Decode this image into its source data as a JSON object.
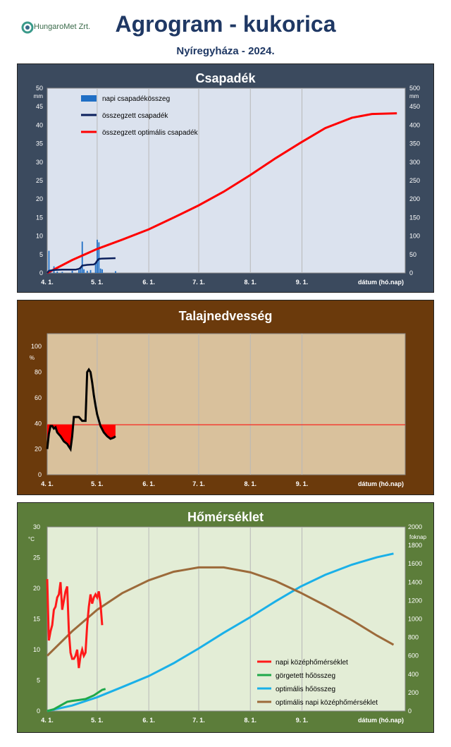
{
  "header": {
    "logo_text": "HungaroMet Zrt.",
    "title": "Agrogram - kukorica",
    "subtitle": "Nyíregyháza  - 2024."
  },
  "colors": {
    "navy_panel": "#3b4a5e",
    "brown_panel": "#6b3a0c",
    "green_panel": "#5c7d3a",
    "plot_blue": "#dbe2ee",
    "plot_tan": "#d9c19c",
    "plot_green": "#e3edd6"
  },
  "chart_data": [
    {
      "type": "line",
      "title": "Csapadék",
      "y_unit_left": "mm",
      "y_unit_right": "mm",
      "xlabel": "dátum (hó.nap)",
      "x_ticks": [
        "4. 1.",
        "5. 1.",
        "6. 1.",
        "7. 1.",
        "8. 1.",
        "9. 1."
      ],
      "ylim_left": [
        0,
        50
      ],
      "ylim_right": [
        0,
        500
      ],
      "y_ticks_left": [
        0,
        5,
        10,
        15,
        20,
        25,
        30,
        35,
        40,
        45,
        50
      ],
      "y_ticks_right": [
        0,
        50,
        100,
        150,
        200,
        250,
        300,
        350,
        400,
        450,
        500
      ],
      "legend": [
        "napi csapadékösszeg",
        "összegzett csapadék",
        "összegzett optimális csapadék"
      ],
      "daily_bars": [
        {
          "day": 1,
          "value": 6.0
        },
        {
          "day": 2,
          "value": 0.5
        },
        {
          "day": 4,
          "value": 1.8
        },
        {
          "day": 6,
          "value": 0.4
        },
        {
          "day": 9,
          "value": 0.3
        },
        {
          "day": 15,
          "value": 0.6
        },
        {
          "day": 19,
          "value": 0.8
        },
        {
          "day": 20,
          "value": 1.5
        },
        {
          "day": 21,
          "value": 8.5
        },
        {
          "day": 22,
          "value": 1.0
        },
        {
          "day": 24,
          "value": 0.6
        },
        {
          "day": 26,
          "value": 0.8
        },
        {
          "day": 29,
          "value": 2.5
        },
        {
          "day": 30,
          "value": 9.0
        },
        {
          "day": 31,
          "value": 8.3
        },
        {
          "day": 32,
          "value": 1.2
        },
        {
          "day": 33,
          "value": 1.0
        },
        {
          "day": 41,
          "value": 0.5
        }
      ],
      "cumulative": [
        [
          0,
          0
        ],
        [
          1,
          6
        ],
        [
          4,
          8
        ],
        [
          9,
          9
        ],
        [
          17,
          9
        ],
        [
          19,
          11
        ],
        [
          20,
          14
        ],
        [
          21,
          20
        ],
        [
          24,
          22
        ],
        [
          28,
          23
        ],
        [
          29,
          26
        ],
        [
          30,
          33
        ],
        [
          31,
          38
        ],
        [
          33,
          39
        ],
        [
          41,
          40
        ]
      ],
      "optimal_cumulative": [
        [
          0,
          0
        ],
        [
          15,
          35
        ],
        [
          30,
          65
        ],
        [
          45,
          90
        ],
        [
          61,
          118
        ],
        [
          76,
          150
        ],
        [
          91,
          183
        ],
        [
          106,
          220
        ],
        [
          122,
          265
        ],
        [
          137,
          310
        ],
        [
          152,
          352
        ],
        [
          167,
          392
        ],
        [
          183,
          420
        ],
        [
          195,
          430
        ],
        [
          210,
          432
        ]
      ]
    },
    {
      "type": "line",
      "title": "Talajnedvesség",
      "y_unit_left": "%",
      "xlabel": "dátum (hó.nap)",
      "x_ticks": [
        "4. 1.",
        "5. 1.",
        "6. 1.",
        "7. 1.",
        "8. 1.",
        "9. 1."
      ],
      "ylim": [
        0,
        110
      ],
      "y_ticks": [
        0,
        20,
        40,
        60,
        80,
        100
      ],
      "threshold": 39,
      "soil_moisture": [
        [
          0,
          20
        ],
        [
          1,
          32
        ],
        [
          2,
          38
        ],
        [
          3,
          38
        ],
        [
          4,
          36
        ],
        [
          5,
          37
        ],
        [
          6,
          33
        ],
        [
          8,
          30
        ],
        [
          10,
          26
        ],
        [
          12,
          24
        ],
        [
          13,
          22
        ],
        [
          14,
          20
        ],
        [
          15,
          30
        ],
        [
          16,
          45
        ],
        [
          19,
          45
        ],
        [
          21,
          42
        ],
        [
          23,
          42
        ],
        [
          24,
          80
        ],
        [
          25,
          82
        ],
        [
          26,
          80
        ],
        [
          27,
          72
        ],
        [
          28,
          62
        ],
        [
          29,
          54
        ],
        [
          30,
          47
        ],
        [
          32,
          38
        ],
        [
          34,
          33
        ],
        [
          36,
          30
        ],
        [
          38,
          28
        ],
        [
          40,
          29
        ],
        [
          41,
          30
        ]
      ]
    },
    {
      "type": "line",
      "title": "Hőmérséklet",
      "y_unit_left": "°C",
      "y_unit_right": "foknap",
      "xlabel": "dátum (hó.nap)",
      "x_ticks": [
        "4. 1.",
        "5. 1.",
        "6. 1.",
        "7. 1.",
        "8. 1.",
        "9. 1."
      ],
      "ylim_left": [
        0,
        30
      ],
      "ylim_right": [
        0,
        2000
      ],
      "y_ticks_left": [
        0,
        5,
        10,
        15,
        20,
        25,
        30
      ],
      "y_ticks_right": [
        0,
        200,
        400,
        600,
        800,
        1000,
        1200,
        1400,
        1600,
        1800,
        2000
      ],
      "legend": [
        "napi középhőmérséklet",
        "görgetett hőösszeg",
        "optimális hőösszeg",
        "optimális napi középhőmérséklet"
      ],
      "daily_mean_temp": [
        [
          0,
          21.5
        ],
        [
          1,
          11.5
        ],
        [
          2,
          13
        ],
        [
          3,
          14
        ],
        [
          4,
          16.5
        ],
        [
          5,
          17
        ],
        [
          6,
          18.5
        ],
        [
          7,
          19
        ],
        [
          8,
          21
        ],
        [
          9,
          16.5
        ],
        [
          10,
          18
        ],
        [
          11,
          19.5
        ],
        [
          12,
          20.3
        ],
        [
          13,
          13
        ],
        [
          14,
          9.5
        ],
        [
          15,
          8.5
        ],
        [
          16,
          8.5
        ],
        [
          17,
          9
        ],
        [
          18,
          10
        ],
        [
          19,
          7
        ],
        [
          20,
          9
        ],
        [
          21,
          10
        ],
        [
          22,
          9
        ],
        [
          23,
          9.5
        ],
        [
          24,
          14
        ],
        [
          25,
          17
        ],
        [
          26,
          19
        ],
        [
          27,
          17.5
        ],
        [
          28,
          18.5
        ],
        [
          29,
          19
        ],
        [
          30,
          18.5
        ],
        [
          31,
          19.5
        ],
        [
          32,
          17.5
        ],
        [
          33,
          14
        ]
      ],
      "rolling_heat_sum": [
        [
          0,
          0
        ],
        [
          4,
          20
        ],
        [
          8,
          60
        ],
        [
          12,
          100
        ],
        [
          15,
          110
        ],
        [
          19,
          120
        ],
        [
          23,
          130
        ],
        [
          28,
          170
        ],
        [
          33,
          230
        ],
        [
          35,
          240
        ]
      ],
      "optimal_heat_sum": [
        [
          0,
          0
        ],
        [
          15,
          60
        ],
        [
          30,
          150
        ],
        [
          45,
          260
        ],
        [
          61,
          380
        ],
        [
          76,
          520
        ],
        [
          91,
          680
        ],
        [
          106,
          850
        ],
        [
          122,
          1020
        ],
        [
          137,
          1190
        ],
        [
          152,
          1350
        ],
        [
          167,
          1480
        ],
        [
          183,
          1590
        ],
        [
          198,
          1670
        ],
        [
          208,
          1710
        ]
      ],
      "optimal_daily_temp": [
        [
          0,
          9
        ],
        [
          15,
          13
        ],
        [
          30,
          16.5
        ],
        [
          45,
          19.2
        ],
        [
          61,
          21.3
        ],
        [
          76,
          22.7
        ],
        [
          91,
          23.4
        ],
        [
          106,
          23.4
        ],
        [
          122,
          22.6
        ],
        [
          137,
          21.2
        ],
        [
          152,
          19.3
        ],
        [
          167,
          17.2
        ],
        [
          183,
          14.8
        ],
        [
          198,
          12.3
        ],
        [
          208,
          10.8
        ]
      ]
    }
  ]
}
